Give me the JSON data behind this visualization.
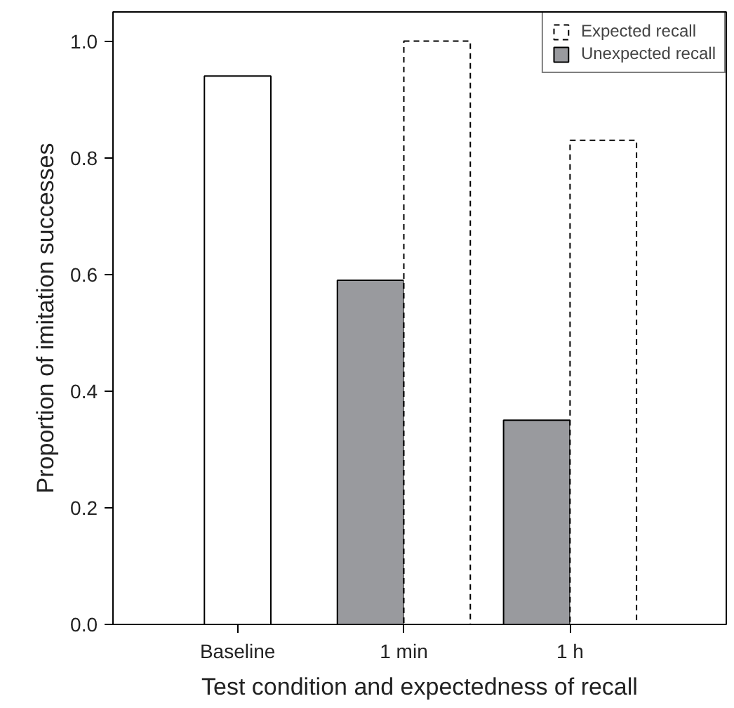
{
  "chart_data": {
    "type": "bar",
    "xlabel": "Test condition and expectedness of recall",
    "ylabel": "Proportion of imitation successes",
    "categories": [
      "Baseline",
      "1 min",
      "1 h"
    ],
    "series": [
      {
        "color": "#ffffff",
        "values": [
          0.94,
          null,
          null
        ],
        "line_style": "solid"
      },
      {
        "name": "Unexpected recall",
        "color": "#999a9e",
        "values": [
          null,
          0.59,
          0.35
        ],
        "line_style": "solid"
      },
      {
        "name": "Expected recall",
        "color": "#ffffff",
        "values": [
          null,
          1.0,
          0.83
        ],
        "line_style": "dashed"
      }
    ],
    "ylim": [
      0,
      1.05
    ],
    "yticks": [
      {
        "value": 0,
        "label": "0.0"
      },
      {
        "value": 0.2,
        "label": "0.2"
      },
      {
        "value": 0.4,
        "label": "0.4"
      },
      {
        "value": 0.6,
        "label": "0.6"
      },
      {
        "value": 0.8,
        "label": "0.8"
      },
      {
        "value": 1.0,
        "label": "1.0"
      }
    ],
    "grid": false,
    "legend": "top right"
  }
}
